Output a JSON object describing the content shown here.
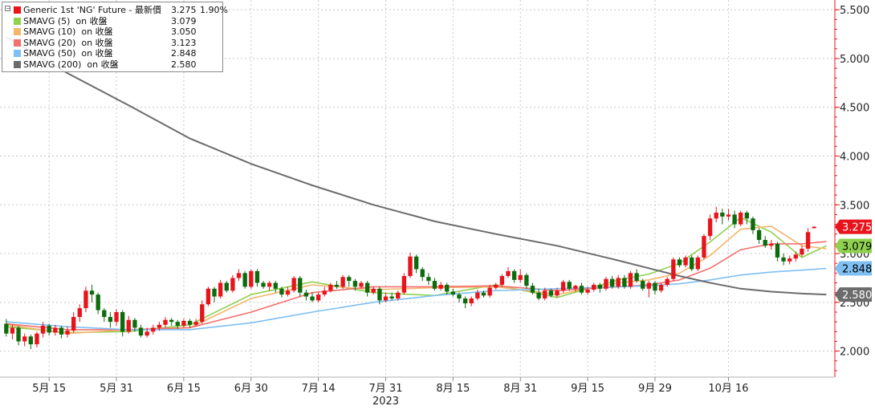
{
  "legend": {
    "items": [
      {
        "name": "Generic 1st 'NG' Future - 最新價",
        "value": "3.275",
        "change": "1.90%",
        "color": "#e8141c"
      },
      {
        "name": "SMAVG (5)  on 收盤",
        "value": "3.079",
        "change": "",
        "color": "#8fd14f"
      },
      {
        "name": "SMAVG (10)  on 收盤",
        "value": "3.050",
        "change": "",
        "color": "#f5b56a"
      },
      {
        "name": "SMAVG (20)  on 收盤",
        "value": "3.123",
        "change": "",
        "color": "#f2706e"
      },
      {
        "name": "SMAVG (50)  on 收盤",
        "value": "2.848",
        "change": "",
        "color": "#7fbff2"
      },
      {
        "name": "SMAVG (200)  on 收盤",
        "value": "2.580",
        "change": "",
        "color": "#6b6b6b"
      }
    ]
  },
  "chart_data": {
    "type": "candlestick",
    "title": "",
    "xlabel": "2023",
    "ylabel": "",
    "ylim": [
      1.75,
      5.6
    ],
    "y_ticks": [
      "2.000",
      "2.500",
      "3.000",
      "3.500",
      "4.000",
      "4.500",
      "5.000",
      "5.500"
    ],
    "x_ticks": [
      "5月 15",
      "5月 31",
      "6月 15",
      "6月 30",
      "7月 14",
      "7月 31",
      "8月 15",
      "8月 31",
      "9月 15",
      "9月 29",
      "10月 16"
    ],
    "year_label": "2023",
    "grid": true,
    "legend_position": "top-left",
    "candles": [
      {
        "o": 2.28,
        "c": 2.18,
        "h": 2.33,
        "l": 2.15
      },
      {
        "o": 2.18,
        "c": 2.24,
        "h": 2.27,
        "l": 2.12
      },
      {
        "o": 2.24,
        "c": 2.1,
        "h": 2.26,
        "l": 2.06
      },
      {
        "o": 2.1,
        "c": 2.15,
        "h": 2.18,
        "l": 2.05
      },
      {
        "o": 2.15,
        "c": 2.07,
        "h": 2.17,
        "l": 2.02
      },
      {
        "o": 2.07,
        "c": 2.18,
        "h": 2.2,
        "l": 2.04
      },
      {
        "o": 2.18,
        "c": 2.26,
        "h": 2.3,
        "l": 2.14
      },
      {
        "o": 2.26,
        "c": 2.19,
        "h": 2.28,
        "l": 2.16
      },
      {
        "o": 2.19,
        "c": 2.24,
        "h": 2.27,
        "l": 2.16
      },
      {
        "o": 2.24,
        "c": 2.17,
        "h": 2.26,
        "l": 2.13
      },
      {
        "o": 2.17,
        "c": 2.21,
        "h": 2.25,
        "l": 2.14
      },
      {
        "o": 2.21,
        "c": 2.35,
        "h": 2.4,
        "l": 2.19
      },
      {
        "o": 2.35,
        "c": 2.44,
        "h": 2.48,
        "l": 2.3
      },
      {
        "o": 2.44,
        "c": 2.62,
        "h": 2.66,
        "l": 2.4
      },
      {
        "o": 2.62,
        "c": 2.58,
        "h": 2.68,
        "l": 2.5
      },
      {
        "o": 2.58,
        "c": 2.42,
        "h": 2.6,
        "l": 2.38
      },
      {
        "o": 2.42,
        "c": 2.35,
        "h": 2.44,
        "l": 2.3
      },
      {
        "o": 2.35,
        "c": 2.3,
        "h": 2.4,
        "l": 2.24
      },
      {
        "o": 2.3,
        "c": 2.4,
        "h": 2.43,
        "l": 2.26
      },
      {
        "o": 2.4,
        "c": 2.2,
        "h": 2.42,
        "l": 2.15
      },
      {
        "o": 2.2,
        "c": 2.32,
        "h": 2.36,
        "l": 2.18
      },
      {
        "o": 2.32,
        "c": 2.24,
        "h": 2.34,
        "l": 2.2
      },
      {
        "o": 2.24,
        "c": 2.16,
        "h": 2.27,
        "l": 2.14
      },
      {
        "o": 2.16,
        "c": 2.2,
        "h": 2.24,
        "l": 2.14
      },
      {
        "o": 2.2,
        "c": 2.24,
        "h": 2.27,
        "l": 2.17
      },
      {
        "o": 2.24,
        "c": 2.27,
        "h": 2.3,
        "l": 2.21
      },
      {
        "o": 2.27,
        "c": 2.32,
        "h": 2.35,
        "l": 2.24
      },
      {
        "o": 2.32,
        "c": 2.3,
        "h": 2.34,
        "l": 2.26
      },
      {
        "o": 2.3,
        "c": 2.26,
        "h": 2.32,
        "l": 2.23
      },
      {
        "o": 2.26,
        "c": 2.31,
        "h": 2.33,
        "l": 2.24
      },
      {
        "o": 2.31,
        "c": 2.27,
        "h": 2.33,
        "l": 2.24
      },
      {
        "o": 2.27,
        "c": 2.3,
        "h": 2.33,
        "l": 2.25
      },
      {
        "o": 2.3,
        "c": 2.48,
        "h": 2.52,
        "l": 2.28
      },
      {
        "o": 2.48,
        "c": 2.64,
        "h": 2.66,
        "l": 2.46
      },
      {
        "o": 2.64,
        "c": 2.56,
        "h": 2.66,
        "l": 2.5
      },
      {
        "o": 2.56,
        "c": 2.7,
        "h": 2.73,
        "l": 2.54
      },
      {
        "o": 2.7,
        "c": 2.62,
        "h": 2.72,
        "l": 2.6
      },
      {
        "o": 2.62,
        "c": 2.75,
        "h": 2.78,
        "l": 2.6
      },
      {
        "o": 2.75,
        "c": 2.8,
        "h": 2.84,
        "l": 2.72
      },
      {
        "o": 2.8,
        "c": 2.66,
        "h": 2.82,
        "l": 2.64
      },
      {
        "o": 2.66,
        "c": 2.82,
        "h": 2.84,
        "l": 2.64
      },
      {
        "o": 2.82,
        "c": 2.7,
        "h": 2.84,
        "l": 2.66
      },
      {
        "o": 2.7,
        "c": 2.66,
        "h": 2.72,
        "l": 2.64
      },
      {
        "o": 2.66,
        "c": 2.7,
        "h": 2.72,
        "l": 2.62
      },
      {
        "o": 2.7,
        "c": 2.64,
        "h": 2.72,
        "l": 2.6
      },
      {
        "o": 2.64,
        "c": 2.58,
        "h": 2.66,
        "l": 2.55
      },
      {
        "o": 2.58,
        "c": 2.62,
        "h": 2.66,
        "l": 2.56
      },
      {
        "o": 2.62,
        "c": 2.75,
        "h": 2.77,
        "l": 2.6
      },
      {
        "o": 2.75,
        "c": 2.6,
        "h": 2.77,
        "l": 2.56
      },
      {
        "o": 2.6,
        "c": 2.56,
        "h": 2.63,
        "l": 2.52
      },
      {
        "o": 2.56,
        "c": 2.52,
        "h": 2.6,
        "l": 2.5
      },
      {
        "o": 2.52,
        "c": 2.58,
        "h": 2.6,
        "l": 2.5
      },
      {
        "o": 2.58,
        "c": 2.62,
        "h": 2.66,
        "l": 2.56
      },
      {
        "o": 2.62,
        "c": 2.68,
        "h": 2.7,
        "l": 2.6
      },
      {
        "o": 2.68,
        "c": 2.66,
        "h": 2.72,
        "l": 2.64
      },
      {
        "o": 2.66,
        "c": 2.76,
        "h": 2.78,
        "l": 2.64
      },
      {
        "o": 2.76,
        "c": 2.72,
        "h": 2.78,
        "l": 2.66
      },
      {
        "o": 2.72,
        "c": 2.66,
        "h": 2.74,
        "l": 2.62
      },
      {
        "o": 2.66,
        "c": 2.7,
        "h": 2.72,
        "l": 2.64
      },
      {
        "o": 2.7,
        "c": 2.6,
        "h": 2.72,
        "l": 2.56
      },
      {
        "o": 2.6,
        "c": 2.64,
        "h": 2.66,
        "l": 2.58
      },
      {
        "o": 2.64,
        "c": 2.52,
        "h": 2.66,
        "l": 2.48
      },
      {
        "o": 2.52,
        "c": 2.56,
        "h": 2.6,
        "l": 2.5
      },
      {
        "o": 2.56,
        "c": 2.54,
        "h": 2.6,
        "l": 2.52
      },
      {
        "o": 2.54,
        "c": 2.6,
        "h": 2.62,
        "l": 2.52
      },
      {
        "o": 2.6,
        "c": 2.77,
        "h": 2.8,
        "l": 2.58
      },
      {
        "o": 2.77,
        "c": 2.97,
        "h": 3.01,
        "l": 2.75
      },
      {
        "o": 2.97,
        "c": 2.84,
        "h": 2.99,
        "l": 2.8
      },
      {
        "o": 2.84,
        "c": 2.76,
        "h": 2.86,
        "l": 2.72
      },
      {
        "o": 2.76,
        "c": 2.72,
        "h": 2.8,
        "l": 2.68
      },
      {
        "o": 2.72,
        "c": 2.64,
        "h": 2.75,
        "l": 2.62
      },
      {
        "o": 2.64,
        "c": 2.68,
        "h": 2.71,
        "l": 2.62
      },
      {
        "o": 2.68,
        "c": 2.61,
        "h": 2.7,
        "l": 2.58
      },
      {
        "o": 2.61,
        "c": 2.58,
        "h": 2.64,
        "l": 2.56
      },
      {
        "o": 2.58,
        "c": 2.54,
        "h": 2.6,
        "l": 2.5
      },
      {
        "o": 2.54,
        "c": 2.49,
        "h": 2.56,
        "l": 2.44
      },
      {
        "o": 2.49,
        "c": 2.54,
        "h": 2.56,
        "l": 2.46
      },
      {
        "o": 2.54,
        "c": 2.6,
        "h": 2.63,
        "l": 2.52
      },
      {
        "o": 2.6,
        "c": 2.57,
        "h": 2.62,
        "l": 2.55
      },
      {
        "o": 2.57,
        "c": 2.65,
        "h": 2.68,
        "l": 2.55
      },
      {
        "o": 2.65,
        "c": 2.68,
        "h": 2.7,
        "l": 2.63
      },
      {
        "o": 2.68,
        "c": 2.77,
        "h": 2.79,
        "l": 2.66
      },
      {
        "o": 2.77,
        "c": 2.82,
        "h": 2.86,
        "l": 2.75
      },
      {
        "o": 2.82,
        "c": 2.73,
        "h": 2.84,
        "l": 2.7
      },
      {
        "o": 2.73,
        "c": 2.78,
        "h": 2.84,
        "l": 2.7
      },
      {
        "o": 2.78,
        "c": 2.67,
        "h": 2.8,
        "l": 2.64
      },
      {
        "o": 2.67,
        "c": 2.6,
        "h": 2.7,
        "l": 2.58
      },
      {
        "o": 2.6,
        "c": 2.54,
        "h": 2.64,
        "l": 2.52
      },
      {
        "o": 2.54,
        "c": 2.62,
        "h": 2.65,
        "l": 2.52
      },
      {
        "o": 2.62,
        "c": 2.57,
        "h": 2.64,
        "l": 2.55
      },
      {
        "o": 2.57,
        "c": 2.62,
        "h": 2.65,
        "l": 2.55
      },
      {
        "o": 2.62,
        "c": 2.71,
        "h": 2.73,
        "l": 2.6
      },
      {
        "o": 2.71,
        "c": 2.64,
        "h": 2.73,
        "l": 2.62
      },
      {
        "o": 2.64,
        "c": 2.67,
        "h": 2.68,
        "l": 2.61
      },
      {
        "o": 2.67,
        "c": 2.6,
        "h": 2.7,
        "l": 2.58
      },
      {
        "o": 2.6,
        "c": 2.63,
        "h": 2.66,
        "l": 2.58
      },
      {
        "o": 2.63,
        "c": 2.68,
        "h": 2.7,
        "l": 2.61
      },
      {
        "o": 2.68,
        "c": 2.64,
        "h": 2.7,
        "l": 2.6
      },
      {
        "o": 2.64,
        "c": 2.74,
        "h": 2.76,
        "l": 2.62
      },
      {
        "o": 2.74,
        "c": 2.66,
        "h": 2.77,
        "l": 2.64
      },
      {
        "o": 2.66,
        "c": 2.75,
        "h": 2.78,
        "l": 2.64
      },
      {
        "o": 2.75,
        "c": 2.66,
        "h": 2.78,
        "l": 2.64
      },
      {
        "o": 2.66,
        "c": 2.8,
        "h": 2.82,
        "l": 2.64
      },
      {
        "o": 2.8,
        "c": 2.72,
        "h": 2.84,
        "l": 2.7
      },
      {
        "o": 2.72,
        "c": 2.64,
        "h": 2.74,
        "l": 2.62
      },
      {
        "o": 2.64,
        "c": 2.7,
        "h": 2.72,
        "l": 2.55
      },
      {
        "o": 2.7,
        "c": 2.62,
        "h": 2.72,
        "l": 2.58
      },
      {
        "o": 2.62,
        "c": 2.68,
        "h": 2.7,
        "l": 2.6
      },
      {
        "o": 2.68,
        "c": 2.74,
        "h": 2.76,
        "l": 2.66
      },
      {
        "o": 2.74,
        "c": 2.94,
        "h": 2.96,
        "l": 2.72
      },
      {
        "o": 2.94,
        "c": 2.88,
        "h": 2.96,
        "l": 2.86
      },
      {
        "o": 2.88,
        "c": 2.96,
        "h": 2.98,
        "l": 2.86
      },
      {
        "o": 2.96,
        "c": 2.84,
        "h": 2.98,
        "l": 2.82
      },
      {
        "o": 2.84,
        "c": 2.96,
        "h": 2.98,
        "l": 2.82
      },
      {
        "o": 2.96,
        "c": 3.18,
        "h": 3.2,
        "l": 2.94
      },
      {
        "o": 3.18,
        "c": 3.36,
        "h": 3.4,
        "l": 3.14
      },
      {
        "o": 3.36,
        "c": 3.42,
        "h": 3.48,
        "l": 3.32
      },
      {
        "o": 3.42,
        "c": 3.38,
        "h": 3.46,
        "l": 3.3
      },
      {
        "o": 3.38,
        "c": 3.4,
        "h": 3.46,
        "l": 3.34
      },
      {
        "o": 3.4,
        "c": 3.3,
        "h": 3.44,
        "l": 3.26
      },
      {
        "o": 3.3,
        "c": 3.42,
        "h": 3.44,
        "l": 3.28
      },
      {
        "o": 3.42,
        "c": 3.36,
        "h": 3.44,
        "l": 3.3
      },
      {
        "o": 3.36,
        "c": 3.24,
        "h": 3.38,
        "l": 3.2
      },
      {
        "o": 3.24,
        "c": 3.14,
        "h": 3.26,
        "l": 3.1
      },
      {
        "o": 3.14,
        "c": 3.08,
        "h": 3.18,
        "l": 3.06
      },
      {
        "o": 3.08,
        "c": 3.1,
        "h": 3.14,
        "l": 3.04
      },
      {
        "o": 3.1,
        "c": 2.96,
        "h": 3.12,
        "l": 2.92
      },
      {
        "o": 2.96,
        "c": 2.92,
        "h": 3.0,
        "l": 2.88
      },
      {
        "o": 2.92,
        "c": 2.95,
        "h": 2.98,
        "l": 2.89
      },
      {
        "o": 2.95,
        "c": 2.99,
        "h": 3.02,
        "l": 2.92
      },
      {
        "o": 2.99,
        "c": 3.05,
        "h": 3.08,
        "l": 2.97
      },
      {
        "o": 3.05,
        "c": 3.22,
        "h": 3.26,
        "l": 3.02
      },
      {
        "o": 3.26,
        "c": 3.275,
        "h": 3.28,
        "l": 3.26
      }
    ],
    "series": [
      {
        "name": "SMAVG (5)",
        "color": "#8fd14f",
        "x": [
          0,
          10,
          20,
          30,
          40,
          50,
          60,
          70,
          80,
          90,
          100,
          105,
          110,
          115,
          120,
          125,
          130,
          134
        ],
        "values": [
          2.25,
          2.19,
          2.2,
          2.27,
          2.58,
          2.71,
          2.6,
          2.57,
          2.68,
          2.55,
          2.73,
          2.79,
          2.9,
          3.12,
          3.37,
          3.22,
          2.96,
          3.079
        ]
      },
      {
        "name": "SMAVG (10)",
        "color": "#f5b56a",
        "x": [
          0,
          10,
          20,
          30,
          40,
          50,
          60,
          70,
          80,
          90,
          100,
          105,
          110,
          115,
          120,
          125,
          130,
          134
        ],
        "values": [
          2.27,
          2.18,
          2.22,
          2.24,
          2.54,
          2.68,
          2.63,
          2.65,
          2.66,
          2.58,
          2.7,
          2.73,
          2.8,
          2.98,
          3.25,
          3.28,
          3.08,
          3.05
        ]
      },
      {
        "name": "SMAVG (20)",
        "color": "#f2706e",
        "x": [
          0,
          10,
          20,
          30,
          40,
          50,
          60,
          70,
          80,
          90,
          100,
          105,
          110,
          115,
          120,
          125,
          130,
          134
        ],
        "values": [
          2.28,
          2.22,
          2.22,
          2.24,
          2.4,
          2.6,
          2.66,
          2.66,
          2.67,
          2.62,
          2.66,
          2.68,
          2.73,
          2.85,
          3.04,
          3.1,
          3.1,
          3.123
        ]
      },
      {
        "name": "SMAVG (50)",
        "color": "#7fbff2",
        "x": [
          0,
          10,
          20,
          30,
          40,
          50,
          60,
          70,
          80,
          90,
          100,
          105,
          110,
          115,
          120,
          125,
          130,
          134
        ],
        "values": [
          2.3,
          2.25,
          2.22,
          2.22,
          2.29,
          2.4,
          2.5,
          2.57,
          2.62,
          2.64,
          2.66,
          2.67,
          2.69,
          2.73,
          2.78,
          2.81,
          2.83,
          2.848
        ]
      },
      {
        "name": "SMAVG (200)",
        "color": "#6b6b6b",
        "x": [
          0,
          10,
          20,
          30,
          40,
          50,
          60,
          70,
          80,
          90,
          100,
          105,
          110,
          115,
          120,
          125,
          130,
          134
        ],
        "values": [
          5.22,
          4.85,
          4.52,
          4.18,
          3.92,
          3.7,
          3.5,
          3.33,
          3.2,
          3.08,
          2.93,
          2.85,
          2.77,
          2.7,
          2.64,
          2.61,
          2.59,
          2.58
        ]
      }
    ],
    "x_tick_index": [
      7,
      18,
      29,
      40,
      51,
      62,
      73,
      84,
      95,
      106,
      118
    ],
    "up_color": "#e8141c",
    "down_color": "#0d6b0d",
    "value_tags": [
      {
        "label": "3.275",
        "value": 3.275,
        "bg": "#e8141c",
        "fg": "#ffffff"
      },
      {
        "label": "3.079",
        "value": 3.079,
        "bg": "#8fd14f",
        "fg": "#000000"
      },
      {
        "label": "2.848",
        "value": 2.848,
        "bg": "#7fbff2",
        "fg": "#000000"
      },
      {
        "label": "2.580",
        "value": 2.58,
        "bg": "#6b6b6b",
        "fg": "#ffffff"
      }
    ]
  }
}
